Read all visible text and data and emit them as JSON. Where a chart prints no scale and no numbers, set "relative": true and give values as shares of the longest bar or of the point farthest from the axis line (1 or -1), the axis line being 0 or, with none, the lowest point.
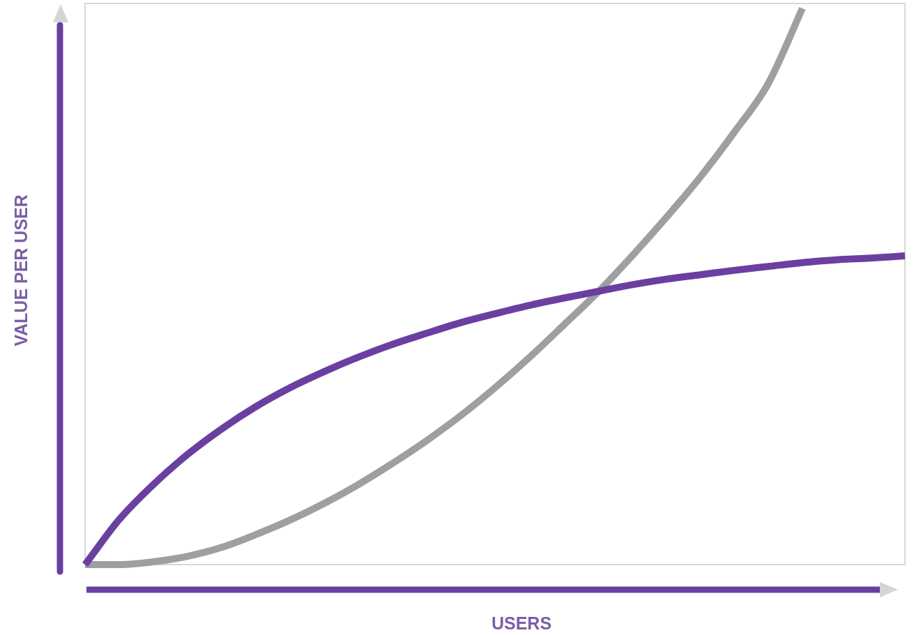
{
  "chart_data": {
    "type": "line",
    "relative": true,
    "xlabel": "USERS",
    "ylabel": "VALUE PER USER",
    "marker": "none",
    "line_style": "solid",
    "categories": [
      null,
      null,
      null,
      null,
      null,
      null,
      null,
      null,
      null,
      null,
      null,
      null,
      null,
      null,
      null,
      null,
      null,
      null,
      null,
      null,
      null,
      null,
      null,
      null,
      null
    ],
    "series": [
      {
        "color": "#6b3fa0",
        "values": [
          0,
          0.081,
          0.144,
          0.198,
          0.244,
          0.284,
          0.318,
          0.347,
          0.373,
          0.396,
          0.416,
          0.435,
          0.451,
          0.466,
          0.479,
          0.491,
          0.503,
          0.513,
          0.521,
          0.529,
          0.536,
          0.543,
          0.548,
          0.551,
          0.555
        ]
      },
      {
        "color": "#9d9fa2",
        "values": [
          0,
          0,
          0.005,
          0.015,
          0.031,
          0.054,
          0.08,
          0.11,
          0.144,
          0.182,
          0.223,
          0.268,
          0.318,
          0.372,
          0.43,
          0.489,
          0.554,
          0.623,
          0.696,
          0.777,
          0.865,
          1,
          null,
          null,
          null
        ]
      }
    ]
  }
}
